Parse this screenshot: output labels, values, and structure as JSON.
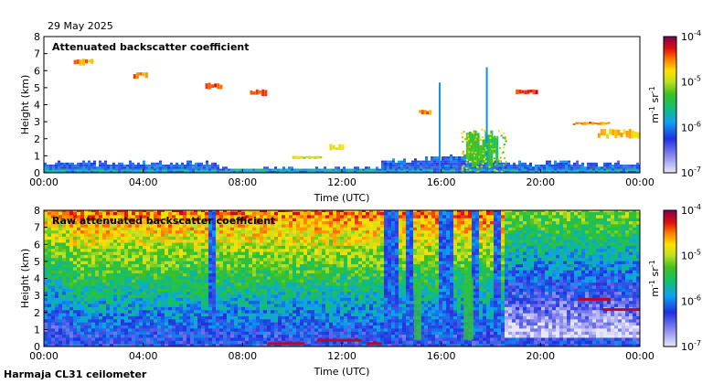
{
  "date": "29 May 2025",
  "footer": "Harmaja CL31 ceilometer",
  "chart_data": [
    {
      "type": "heatmap",
      "title": "Attenuated backscatter coefficient",
      "xlabel": "Time (UTC)",
      "ylabel": "Height (km)",
      "x_ticks": [
        "00:00",
        "04:00",
        "08:00",
        "12:00",
        "16:00",
        "20:00",
        "00:00"
      ],
      "x_range_hours": [
        0,
        24
      ],
      "y_ticks": [
        "0",
        "1",
        "2",
        "3",
        "4",
        "5",
        "6",
        "7",
        "8"
      ],
      "ylim": [
        0,
        8
      ],
      "colorbar": {
        "label_base": "m",
        "label_exp1": "-1",
        "label_mid": " sr",
        "label_exp2": "-1",
        "ticks": [
          {
            "base": "10",
            "exp": "-4",
            "log": -4
          },
          {
            "base": "10",
            "exp": "-5",
            "log": -5
          },
          {
            "base": "10",
            "exp": "-6",
            "log": -6
          },
          {
            "base": "10",
            "exp": "-7",
            "log": -7
          }
        ]
      },
      "features": [
        {
          "t0": 0,
          "t1": 24,
          "h0": 0,
          "h1": 0.7,
          "v": 0.22,
          "note": "low-level aerosol layer"
        },
        {
          "t0": 1.2,
          "t1": 2.0,
          "h0": 6.3,
          "h1": 6.7,
          "v": 0.88,
          "note": "high cloud"
        },
        {
          "t0": 3.6,
          "t1": 4.2,
          "h0": 5.5,
          "h1": 5.9,
          "v": 0.9
        },
        {
          "t0": 6.5,
          "t1": 7.2,
          "h0": 4.9,
          "h1": 5.3,
          "v": 0.92
        },
        {
          "t0": 8.3,
          "t1": 9.0,
          "h0": 4.5,
          "h1": 4.9,
          "v": 0.9
        },
        {
          "t0": 10.0,
          "t1": 11.2,
          "h0": 0.8,
          "h1": 1.0,
          "v": 0.75
        },
        {
          "t0": 11.5,
          "t1": 12.1,
          "h0": 1.3,
          "h1": 1.7,
          "v": 0.8
        },
        {
          "t0": 15.1,
          "t1": 15.6,
          "h0": 3.4,
          "h1": 3.7,
          "v": 0.9
        },
        {
          "t0": 17.0,
          "t1": 18.3,
          "h0": 0.3,
          "h1": 2.5,
          "v": 0.6,
          "note": "convective/precip"
        },
        {
          "t0": 19.0,
          "t1": 19.9,
          "h0": 4.6,
          "h1": 4.9,
          "v": 0.95
        },
        {
          "t0": 21.3,
          "t1": 22.8,
          "h0": 2.8,
          "h1": 3.0,
          "v": 0.88
        },
        {
          "t0": 22.3,
          "t1": 24.0,
          "h0": 2.0,
          "h1": 2.6,
          "v": 0.82
        }
      ]
    },
    {
      "type": "heatmap",
      "title": "Raw attenuated backscatter coefficient",
      "xlabel": "Time (UTC)",
      "ylabel": "Height (km)",
      "x_ticks": [
        "00:00",
        "04:00",
        "08:00",
        "12:00",
        "16:00",
        "20:00",
        "00:00"
      ],
      "x_range_hours": [
        0,
        24
      ],
      "y_ticks": [
        "0",
        "1",
        "2",
        "3",
        "4",
        "5",
        "6",
        "7",
        "8"
      ],
      "ylim": [
        0,
        8
      ],
      "colorbar": {
        "label_base": "m",
        "label_exp1": "-1",
        "label_mid": " sr",
        "label_exp2": "-1",
        "ticks": [
          {
            "base": "10",
            "exp": "-4",
            "log": -4
          },
          {
            "base": "10",
            "exp": "-5",
            "log": -5
          },
          {
            "base": "10",
            "exp": "-6",
            "log": -6
          },
          {
            "base": "10",
            "exp": "-7",
            "log": -7
          }
        ]
      },
      "bands": [
        {
          "t0": 6.5,
          "t1": 6.8
        },
        {
          "t0": 13.6,
          "t1": 14.2
        },
        {
          "t0": 14.5,
          "t1": 14.8
        },
        {
          "t0": 15.9,
          "t1": 16.4
        },
        {
          "t0": 17.2,
          "t1": 17.5
        },
        {
          "t0": 18.0,
          "t1": 18.3
        }
      ]
    }
  ]
}
